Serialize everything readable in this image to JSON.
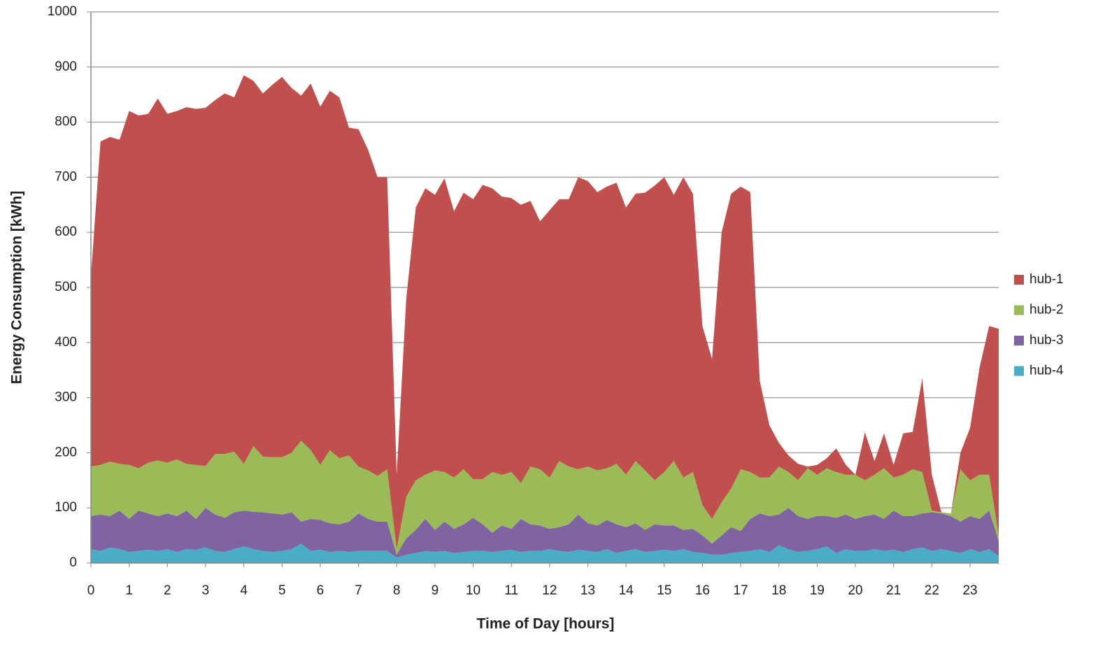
{
  "chart_data": {
    "type": "stacked_area",
    "x_label": "Time of Day [hours]",
    "y_label": "Energy Consumption [kWh]",
    "x": [
      0,
      0.25,
      0.5,
      0.75,
      1,
      1.25,
      1.5,
      1.75,
      2,
      2.25,
      2.5,
      2.75,
      3,
      3.25,
      3.5,
      3.75,
      4,
      4.25,
      4.5,
      4.75,
      5,
      5.25,
      5.5,
      5.75,
      6,
      6.25,
      6.5,
      6.75,
      7,
      7.25,
      7.5,
      7.75,
      8,
      8.25,
      8.5,
      8.75,
      9,
      9.25,
      9.5,
      9.75,
      10,
      10.25,
      10.5,
      10.75,
      11,
      11.25,
      11.5,
      11.75,
      12,
      12.25,
      12.5,
      12.75,
      13,
      13.25,
      13.5,
      13.75,
      14,
      14.25,
      14.5,
      14.75,
      15,
      15.25,
      15.5,
      15.75,
      16,
      16.25,
      16.5,
      16.75,
      17,
      17.25,
      17.5,
      17.75,
      18,
      18.25,
      18.5,
      18.75,
      19,
      19.25,
      19.5,
      19.75,
      20,
      20.25,
      20.5,
      20.75,
      21,
      21.25,
      21.5,
      21.75,
      22,
      22.25,
      22.5,
      22.75,
      23,
      23.25,
      23.5,
      23.75
    ],
    "series": [
      {
        "name": "hub-4",
        "color": "#4bacc6",
        "values": [
          25,
          22,
          28,
          25,
          20,
          22,
          24,
          22,
          25,
          20,
          25,
          24,
          28,
          22,
          20,
          25,
          30,
          25,
          22,
          20,
          22,
          25,
          35,
          22,
          24,
          20,
          22,
          20,
          22,
          22,
          22,
          22,
          10,
          15,
          18,
          22,
          20,
          22,
          18,
          20,
          22,
          22,
          20,
          22,
          24,
          20,
          22,
          22,
          25,
          22,
          20,
          24,
          22,
          20,
          25,
          18,
          22,
          25,
          20,
          22,
          24,
          22,
          25,
          20,
          18,
          15,
          15,
          18,
          20,
          22,
          25,
          20,
          32,
          25,
          20,
          22,
          25,
          30,
          18,
          25,
          22,
          22,
          25,
          22,
          24,
          20,
          25,
          28,
          22,
          25,
          22,
          18,
          25,
          20,
          25,
          12
        ]
      },
      {
        "name": "hub-3",
        "color": "#8064a2",
        "values": [
          60,
          66,
          57,
          70,
          60,
          73,
          66,
          63,
          65,
          65,
          70,
          56,
          72,
          66,
          62,
          67,
          65,
          68,
          70,
          70,
          66,
          67,
          40,
          58,
          54,
          52,
          48,
          55,
          68,
          58,
          53,
          53,
          5,
          30,
          42,
          58,
          40,
          53,
          44,
          50,
          60,
          48,
          35,
          46,
          38,
          60,
          48,
          46,
          37,
          43,
          50,
          64,
          50,
          48,
          53,
          52,
          43,
          47,
          40,
          48,
          44,
          46,
          35,
          42,
          32,
          20,
          35,
          47,
          38,
          58,
          65,
          65,
          56,
          75,
          65,
          58,
          60,
          55,
          64,
          63,
          58,
          63,
          63,
          58,
          71,
          65,
          60,
          62,
          70,
          65,
          63,
          57,
          60,
          60,
          70,
          28
        ]
      },
      {
        "name": "hub-2",
        "color": "#9bbb59",
        "values": [
          90,
          90,
          99,
          85,
          98,
          77,
          92,
          101,
          92,
          103,
          85,
          98,
          76,
          110,
          116,
          110,
          85,
          119,
          101,
          102,
          104,
          108,
          147,
          125,
          100,
          133,
          120,
          120,
          85,
          88,
          83,
          95,
          10,
          75,
          90,
          80,
          108,
          90,
          93,
          100,
          70,
          82,
          110,
          92,
          103,
          65,
          105,
          102,
          93,
          120,
          105,
          82,
          103,
          100,
          94,
          110,
          95,
          113,
          108,
          80,
          97,
          117,
          95,
          103,
          55,
          45,
          60,
          70,
          112,
          85,
          65,
          70,
          87,
          65,
          65,
          92,
          75,
          87,
          83,
          72,
          80,
          65,
          72,
          92,
          60,
          75,
          85,
          75,
          3,
          2,
          5,
          95,
          65,
          80,
          65,
          10
        ]
      },
      {
        "name": "hub-1",
        "color": "#c0504d",
        "values": [
          345,
          587,
          589,
          588,
          642,
          640,
          633,
          657,
          633,
          632,
          647,
          646,
          650,
          642,
          654,
          643,
          705,
          663,
          659,
          676,
          690,
          662,
          626,
          665,
          650,
          652,
          655,
          595,
          612,
          582,
          542,
          530,
          135,
          360,
          495,
          520,
          500,
          533,
          483,
          502,
          508,
          534,
          515,
          505,
          497,
          505,
          482,
          450,
          485,
          475,
          485,
          530,
          518,
          505,
          511,
          510,
          485,
          485,
          504,
          535,
          535,
          483,
          545,
          505,
          325,
          290,
          490,
          535,
          513,
          508,
          175,
          95,
          43,
          30,
          30,
          3,
          18,
          18,
          43,
          18,
          0,
          87,
          25,
          63,
          23,
          75,
          68,
          170,
          65,
          0,
          0,
          30,
          95,
          195,
          270,
          375
        ]
      }
    ],
    "xlim": [
      0,
      23.75
    ],
    "xticks": [
      0,
      1,
      2,
      3,
      4,
      5,
      6,
      7,
      8,
      9,
      10,
      11,
      12,
      13,
      14,
      15,
      16,
      17,
      18,
      19,
      20,
      21,
      22,
      23
    ],
    "ylim": [
      0,
      1000
    ],
    "yticks": [
      0,
      100,
      200,
      300,
      400,
      500,
      600,
      700,
      800,
      900,
      1000
    ],
    "grid": true,
    "legend": "right"
  }
}
